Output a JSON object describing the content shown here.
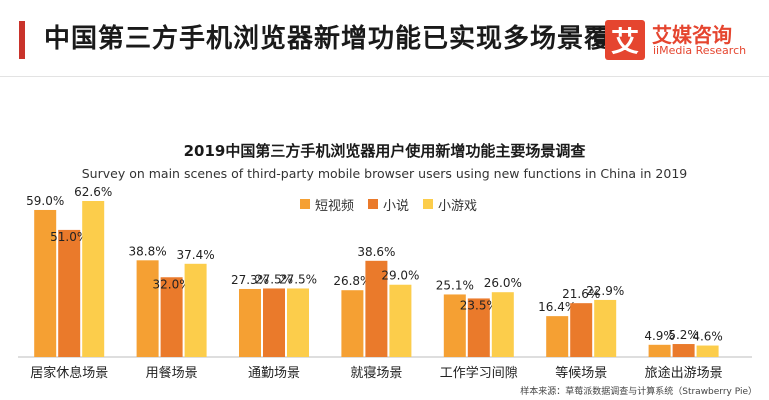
{
  "header": {
    "title": "中国第三方手机浏览器新增功能已实现多场景覆盖",
    "logo_mark": "艾",
    "logo_cn": "艾媒咨询",
    "logo_en": "iiMedia Research"
  },
  "source": "样本来源：草莓派数据调查与计算系统（Strawberry Pie）",
  "colors": {
    "series": [
      "#f5a033",
      "#ea7a2b",
      "#fccd4b"
    ],
    "accent": "#c9332b"
  },
  "chart_data": {
    "type": "bar",
    "title": "2019中国第三方手机浏览器用户使用新增功能主要场景调查",
    "subtitle": "Survey on main scenes of third-party mobile browser users using new functions in China in 2019",
    "categories": [
      "居家休息场景",
      "用餐场景",
      "通勤场景",
      "就寝场景",
      "工作学习间隙",
      "等候场景",
      "旅途出游场景"
    ],
    "series": [
      {
        "name": "短视频",
        "values": [
          59.0,
          38.8,
          27.3,
          26.8,
          25.1,
          16.4,
          4.9
        ],
        "labels": [
          "59.0%",
          "38.8%",
          "27.3%",
          "26.8%",
          "25.1%",
          "16.4%",
          "4.9%"
        ]
      },
      {
        "name": "小说",
        "values": [
          51.0,
          32.0,
          27.5,
          38.6,
          23.5,
          21.6,
          5.2
        ],
        "labels": [
          "51.0%",
          "32.0%",
          "27.5%",
          "38.6%",
          "23.5%",
          "21.6%",
          "5.2%"
        ]
      },
      {
        "name": "小游戏",
        "values": [
          62.6,
          37.4,
          27.5,
          29.0,
          26.0,
          22.9,
          4.6
        ],
        "labels": [
          "62.6%",
          "37.4%",
          "27.5%",
          "29.0%",
          "26.0%",
          "22.9%",
          "4.6%"
        ]
      }
    ],
    "ylim": [
      0,
      62.6
    ],
    "legend": "top-center",
    "grid": false
  }
}
